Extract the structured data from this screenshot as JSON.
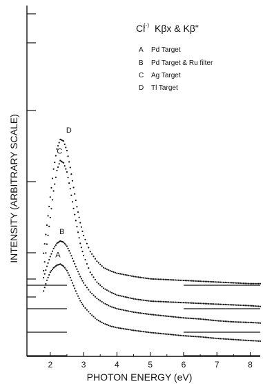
{
  "chart_data": {
    "type": "scatter",
    "title": "Cl(-) Kβx & Kβ\"",
    "title_main": "Cl",
    "title_sup": "(-)",
    "title_rest": "Kβx & Kβ\"",
    "xlabel": "PHOTON ENERGY (eV)",
    "ylabel": "INTENSITY (ARBITRARY SCALE)",
    "xlim": [
      1.3,
      8.3
    ],
    "x_ticks": [
      2,
      3,
      4,
      5,
      6,
      7,
      8
    ],
    "x_tick_labels": [
      "2",
      "3",
      "4",
      "5",
      "6",
      "7",
      "8"
    ],
    "grid": false,
    "legend_position": "top-right",
    "legend": [
      {
        "key": "A",
        "label": "Pd Target"
      },
      {
        "key": "B",
        "label": "Pd Target & Ru filter"
      },
      {
        "key": "C",
        "label": "Ag Target"
      },
      {
        "key": "D",
        "Dlabel": "",
        "label": "Tl Target"
      }
    ],
    "series_offsets": [
      {
        "name": "A",
        "zero_level": 0
      },
      {
        "name": "B",
        "zero_level": 1
      },
      {
        "name": "C",
        "zero_level": 2
      },
      {
        "name": "D",
        "zero_level": 3
      }
    ],
    "series": [
      {
        "name": "A",
        "x": [
          1.8,
          1.9,
          2.0,
          2.1,
          2.2,
          2.3,
          2.4,
          2.5,
          2.6,
          2.7,
          2.8,
          2.9,
          3.0,
          3.2,
          3.4,
          3.6,
          3.8,
          4.0,
          4.5,
          5.0,
          5.5,
          6.0,
          6.5,
          7.0,
          7.5,
          8.0,
          8.3
        ],
        "y": [
          1.2,
          1.4,
          1.55,
          1.63,
          1.68,
          1.7,
          1.66,
          1.58,
          1.45,
          1.3,
          1.15,
          1.02,
          0.92,
          0.78,
          0.67,
          0.6,
          0.55,
          0.52,
          0.47,
          0.43,
          0.4,
          0.37,
          0.35,
          0.32,
          0.3,
          0.28,
          0.27
        ]
      },
      {
        "name": "B",
        "x": [
          1.8,
          1.9,
          2.0,
          2.1,
          2.2,
          2.3,
          2.4,
          2.5,
          2.6,
          2.7,
          2.8,
          2.9,
          3.0,
          3.2,
          3.4,
          3.6,
          3.8,
          4.0,
          4.5,
          5.0,
          5.5,
          6.0,
          6.5,
          7.0,
          7.5,
          8.0,
          8.3
        ],
        "y": [
          0.95,
          1.15,
          1.32,
          1.46,
          1.55,
          1.59,
          1.57,
          1.5,
          1.38,
          1.24,
          1.1,
          0.97,
          0.86,
          0.7,
          0.59,
          0.51,
          0.45,
          0.41,
          0.35,
          0.31,
          0.28,
          0.25,
          0.23,
          0.2,
          0.18,
          0.17,
          0.16
        ]
      },
      {
        "name": "C",
        "x": [
          1.8,
          1.9,
          2.0,
          2.1,
          2.2,
          2.3,
          2.4,
          2.5,
          2.6,
          2.7,
          2.8,
          2.9,
          3.0,
          3.2,
          3.4,
          3.6,
          3.8,
          4.0,
          4.5,
          5.0,
          5.5,
          6.0,
          6.5,
          7.0,
          7.5,
          8.0,
          8.3
        ],
        "y": [
          0.5,
          0.85,
          1.2,
          1.55,
          1.82,
          1.95,
          1.92,
          1.8,
          1.58,
          1.32,
          1.08,
          0.86,
          0.7,
          0.48,
          0.35,
          0.27,
          0.22,
          0.18,
          0.13,
          0.1,
          0.09,
          0.08,
          0.07,
          0.06,
          0.05,
          0.04,
          0.03
        ]
      },
      {
        "name": "D",
        "x": [
          1.8,
          1.9,
          2.0,
          2.1,
          2.2,
          2.3,
          2.4,
          2.5,
          2.6,
          2.7,
          2.8,
          2.9,
          3.0,
          3.2,
          3.4,
          3.6,
          3.8,
          4.0,
          4.5,
          5.0,
          5.5,
          6.0,
          6.5,
          7.0,
          7.5,
          8.0,
          8.3
        ],
        "y": [
          0.4,
          0.75,
          1.1,
          1.45,
          1.7,
          1.82,
          1.8,
          1.68,
          1.47,
          1.22,
          0.98,
          0.78,
          0.62,
          0.42,
          0.3,
          0.22,
          0.18,
          0.15,
          0.11,
          0.08,
          0.07,
          0.06,
          0.05,
          0.04,
          0.03,
          0.02,
          0.02
        ]
      }
    ]
  }
}
